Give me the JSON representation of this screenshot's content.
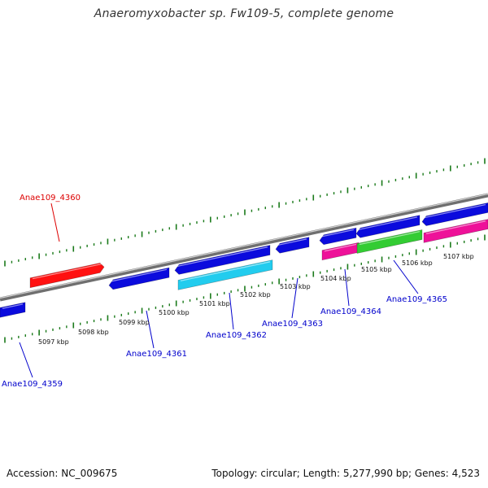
{
  "title": "Anaeromyxobacter sp. Fw109-5, complete genome",
  "footer": {
    "accession": "Accession: NC_009675",
    "summary": "Topology: circular; Length: 5,277,990 bp; Genes: 4,523"
  },
  "colors": {
    "backbone": "#8a8a8a",
    "ticks": "#1a7a1a",
    "label_blue": "#0000cc",
    "label_red": "#dd0000",
    "gene_blue": "#0b0bdd",
    "gene_red": "#ff1111",
    "gene_cyan": "#22ccee",
    "gene_magenta": "#ee1199",
    "gene_green": "#33cc33"
  },
  "tick_labels": [
    "5097 kbp",
    "5098 kbp",
    "5099 kbp",
    "5100 kbp",
    "5101 kbp",
    "5102 kbp",
    "5103 kbp",
    "5104 kbp",
    "5105 kbp",
    "5106 kbp",
    "5107 kbp"
  ],
  "gene_labels": [
    {
      "text": "Anae109_4359",
      "color": "label_blue"
    },
    {
      "text": "Anae109_4360",
      "color": "label_red"
    },
    {
      "text": "Anae109_4361",
      "color": "label_blue"
    },
    {
      "text": "Anae109_4362",
      "color": "label_blue"
    },
    {
      "text": "Anae109_4363",
      "color": "label_blue"
    },
    {
      "text": "Anae109_4364",
      "color": "label_blue"
    },
    {
      "text": "Anae109_4365",
      "color": "label_blue"
    }
  ]
}
